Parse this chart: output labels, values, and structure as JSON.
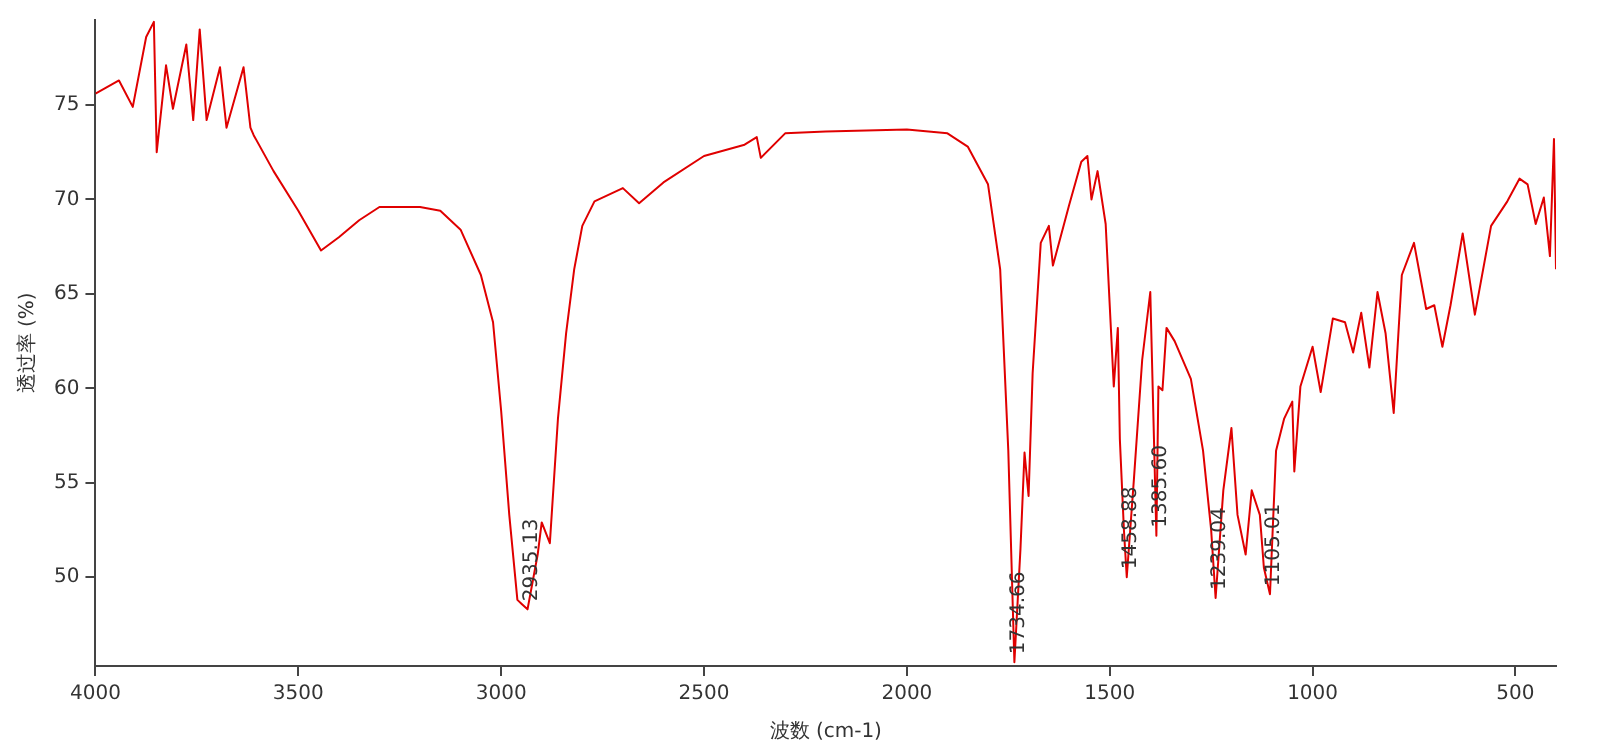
{
  "chart_data": {
    "type": "line",
    "xlabel": "波数 (cm-1)",
    "ylabel": "透过率 (%)",
    "xlim": [
      4000,
      400
    ],
    "xticks": [
      4000,
      3500,
      3000,
      2500,
      2000,
      1500,
      1000,
      500
    ],
    "ylim": [
      45.3,
      79.5
    ],
    "yticks": [
      50,
      55,
      60,
      65,
      70,
      75
    ],
    "grid": false,
    "legend": false,
    "marker": "none",
    "line_style": "solid",
    "annotations": [
      {
        "text": "2935.13",
        "x": 2935,
        "y": 48.3
      },
      {
        "text": "1734.66",
        "x": 1735,
        "y": 45.5
      },
      {
        "text": "1458.88",
        "x": 1458,
        "y": 50.0
      },
      {
        "text": "1385.60",
        "x": 1385,
        "y": 52.2
      },
      {
        "text": "1239.04",
        "x": 1239,
        "y": 48.9
      },
      {
        "text": "1105.01",
        "x": 1105,
        "y": 49.1
      }
    ],
    "series": [
      {
        "color": "#e00000",
        "x": [
          4000,
          3942,
          3908,
          3875,
          3856,
          3849,
          3826,
          3809,
          3776,
          3759,
          3743,
          3726,
          3693,
          3677,
          3635,
          3618,
          3610,
          3561,
          3500,
          3444,
          3400,
          3350,
          3300,
          3200,
          3150,
          3100,
          3050,
          3020,
          3000,
          2980,
          2960,
          2950,
          2935,
          2910,
          2900,
          2880,
          2860,
          2840,
          2820,
          2800,
          2770,
          2700,
          2660,
          2600,
          2500,
          2400,
          2370,
          2360,
          2300,
          2200,
          2000,
          1900,
          1850,
          1800,
          1770,
          1750,
          1735,
          1720,
          1710,
          1700,
          1690,
          1670,
          1650,
          1640,
          1600,
          1570,
          1555,
          1545,
          1530,
          1510,
          1490,
          1480,
          1475,
          1465,
          1458,
          1440,
          1420,
          1400,
          1385,
          1380,
          1370,
          1360,
          1340,
          1300,
          1270,
          1250,
          1239,
          1220,
          1200,
          1185,
          1165,
          1150,
          1130,
          1120,
          1105,
          1090,
          1070,
          1050,
          1045,
          1030,
          1000,
          980,
          950,
          920,
          900,
          880,
          860,
          840,
          820,
          800,
          780,
          750,
          720,
          700,
          680,
          660,
          630,
          600,
          560,
          520,
          490,
          470,
          450,
          430,
          415,
          405,
          400
        ],
        "values": [
          75.6,
          76.3,
          74.9,
          78.6,
          79.4,
          72.5,
          77.1,
          74.8,
          78.2,
          74.2,
          79.0,
          74.2,
          77.0,
          73.8,
          77.0,
          73.8,
          73.4,
          71.5,
          69.4,
          67.3,
          68.0,
          68.9,
          69.6,
          69.6,
          69.4,
          68.4,
          66.0,
          63.5,
          58.8,
          53.3,
          48.8,
          48.6,
          48.3,
          51.2,
          52.9,
          51.8,
          58.4,
          62.9,
          66.3,
          68.6,
          69.9,
          70.6,
          69.8,
          70.9,
          72.3,
          72.9,
          73.3,
          72.2,
          73.5,
          73.6,
          73.7,
          73.5,
          72.8,
          70.8,
          66.3,
          56.7,
          45.5,
          51.5,
          56.6,
          54.3,
          60.8,
          67.7,
          68.6,
          66.5,
          69.7,
          72.0,
          72.3,
          70.0,
          71.5,
          68.7,
          60.1,
          63.2,
          57.3,
          52.5,
          50.0,
          55.3,
          61.5,
          65.1,
          52.2,
          60.1,
          59.9,
          63.2,
          62.5,
          60.5,
          56.7,
          52.5,
          48.9,
          54.6,
          57.9,
          53.3,
          51.2,
          54.6,
          53.3,
          50.5,
          49.1,
          56.7,
          58.4,
          59.3,
          55.6,
          60.1,
          62.2,
          59.8,
          63.7,
          63.5,
          61.9,
          64.0,
          61.1,
          65.1,
          62.9,
          58.7,
          66.0,
          67.7,
          64.2,
          64.4,
          62.2,
          64.4,
          68.2,
          63.9,
          68.6,
          69.9,
          71.1,
          70.8,
          68.7,
          70.1,
          67.0,
          73.2,
          66.3
        ]
      }
    ]
  }
}
